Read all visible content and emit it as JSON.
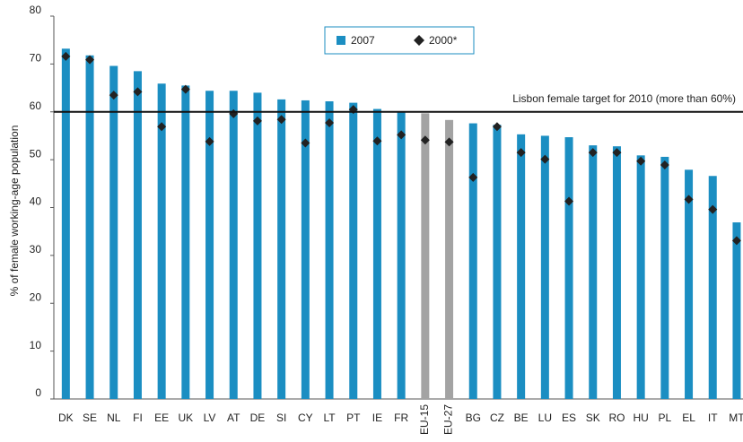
{
  "chart_data": {
    "type": "bar",
    "y_label": "% of female working-age population",
    "categories": [
      "DK",
      "SE",
      "NL",
      "FI",
      "EE",
      "UK",
      "LV",
      "AT",
      "DE",
      "SI",
      "CY",
      "LT",
      "PT",
      "IE",
      "FR",
      "EU-15",
      "EU-27",
      "BG",
      "CZ",
      "BE",
      "LU",
      "ES",
      "SK",
      "RO",
      "HU",
      "PL",
      "EL",
      "IT",
      "MT"
    ],
    "series": [
      {
        "name": "2007",
        "type": "bar",
        "color": "#1b8ec2",
        "colors": [
          "#1b8ec2",
          "#1b8ec2",
          "#1b8ec2",
          "#1b8ec2",
          "#1b8ec2",
          "#1b8ec2",
          "#1b8ec2",
          "#1b8ec2",
          "#1b8ec2",
          "#1b8ec2",
          "#1b8ec2",
          "#1b8ec2",
          "#1b8ec2",
          "#1b8ec2",
          "#1b8ec2",
          "#a3a3a3",
          "#a3a3a3",
          "#1b8ec2",
          "#1b8ec2",
          "#1b8ec2",
          "#1b8ec2",
          "#1b8ec2",
          "#1b8ec2",
          "#1b8ec2",
          "#1b8ec2",
          "#1b8ec2",
          "#1b8ec2",
          "#1b8ec2",
          "#1b8ec2"
        ],
        "values": [
          73.2,
          71.8,
          69.6,
          68.5,
          65.9,
          65.5,
          64.4,
          64.4,
          64.0,
          62.6,
          62.4,
          62.2,
          61.9,
          60.6,
          60.0,
          59.7,
          58.3,
          57.6,
          57.3,
          55.3,
          55.0,
          54.7,
          53.0,
          52.8,
          50.9,
          50.6,
          47.9,
          46.6,
          36.9
        ]
      },
      {
        "name": "2000*",
        "type": "marker",
        "color": "#222222",
        "values": [
          71.6,
          70.9,
          63.5,
          64.2,
          56.9,
          64.7,
          53.8,
          59.6,
          58.1,
          58.4,
          53.5,
          57.7,
          60.5,
          53.9,
          55.2,
          54.1,
          53.7,
          46.3,
          56.9,
          51.5,
          50.1,
          41.3,
          51.5,
          51.5,
          49.7,
          48.9,
          41.7,
          39.6,
          33.1
        ]
      }
    ],
    "annotations": [
      {
        "text": "Lisbon female target for 2010 (more than 60%)",
        "value": 60
      }
    ],
    "vertical_labels": [
      "EU-15",
      "EU-27"
    ],
    "ylim": [
      0,
      80
    ],
    "yticks": [
      0,
      10,
      20,
      30,
      40,
      50,
      60,
      70,
      80
    ],
    "grid": false,
    "legend": "top"
  }
}
